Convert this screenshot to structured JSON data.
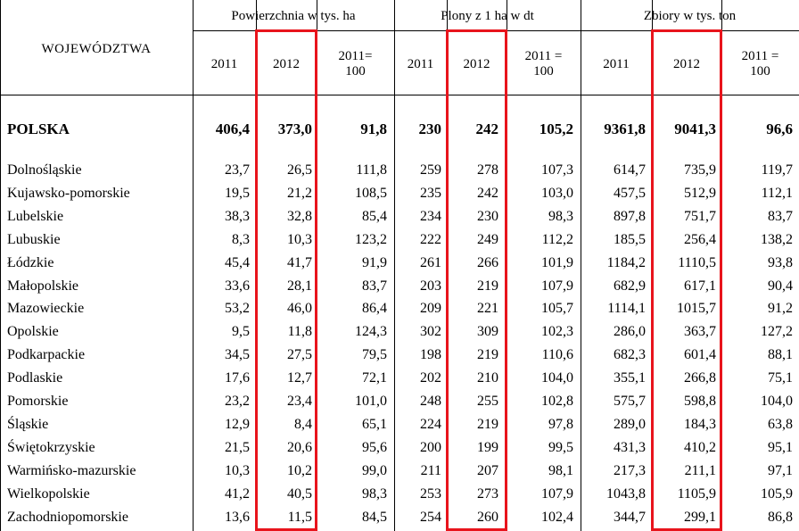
{
  "header": {
    "row_label": "WOJEWÓDZTWA",
    "groups": [
      {
        "title": "Powierzchnia w tys. ha",
        "sub": [
          "2011",
          "2012",
          "2011=\n100"
        ]
      },
      {
        "title": "Plony z 1 ha w dt",
        "sub": [
          "2011",
          "2012",
          "2011 =\n100"
        ]
      },
      {
        "title": "Zbiory w tys. ton",
        "sub": [
          "2011",
          "2012",
          "2011 =\n100"
        ]
      }
    ]
  },
  "total": {
    "name": "POLSKA",
    "values": [
      "406,4",
      "373,0",
      "91,8",
      "230",
      "242",
      "105,2",
      "9361,8",
      "9041,3",
      "96,6"
    ]
  },
  "rows": [
    {
      "name": "Dolnośląskie",
      "values": [
        "23,7",
        "26,5",
        "111,8",
        "259",
        "278",
        "107,3",
        "614,7",
        "735,9",
        "119,7"
      ]
    },
    {
      "name": "Kujawsko-pomorskie",
      "values": [
        "19,5",
        "21,2",
        "108,5",
        "235",
        "242",
        "103,0",
        "457,5",
        "512,9",
        "112,1"
      ]
    },
    {
      "name": "Lubelskie",
      "values": [
        "38,3",
        "32,8",
        "85,4",
        "234",
        "230",
        "98,3",
        "897,8",
        "751,7",
        "83,7"
      ]
    },
    {
      "name": "Lubuskie",
      "values": [
        "8,3",
        "10,3",
        "123,2",
        "222",
        "249",
        "112,2",
        "185,5",
        "256,4",
        "138,2"
      ]
    },
    {
      "name": "Łódzkie",
      "values": [
        "45,4",
        "41,7",
        "91,9",
        "261",
        "266",
        "101,9",
        "1184,2",
        "1110,5",
        "93,8"
      ]
    },
    {
      "name": "Małopolskie",
      "values": [
        "33,6",
        "28,1",
        "83,7",
        "203",
        "219",
        "107,9",
        "682,9",
        "617,1",
        "90,4"
      ]
    },
    {
      "name": "Mazowieckie",
      "values": [
        "53,2",
        "46,0",
        "86,4",
        "209",
        "221",
        "105,7",
        "1114,1",
        "1015,7",
        "91,2"
      ]
    },
    {
      "name": "Opolskie",
      "values": [
        "9,5",
        "11,8",
        "124,3",
        "302",
        "309",
        "102,3",
        "286,0",
        "363,7",
        "127,2"
      ]
    },
    {
      "name": "Podkarpackie",
      "values": [
        "34,5",
        "27,5",
        "79,5",
        "198",
        "219",
        "110,6",
        "682,3",
        "601,4",
        "88,1"
      ]
    },
    {
      "name": "Podlaskie",
      "values": [
        "17,6",
        "12,7",
        "72,1",
        "202",
        "210",
        "104,0",
        "355,1",
        "266,8",
        "75,1"
      ]
    },
    {
      "name": "Pomorskie",
      "values": [
        "23,2",
        "23,4",
        "101,0",
        "248",
        "255",
        "102,8",
        "575,7",
        "598,8",
        "104,0"
      ]
    },
    {
      "name": "Śląskie",
      "values": [
        "12,9",
        "8,4",
        "65,1",
        "224",
        "219",
        "97,8",
        "289,0",
        "184,3",
        "63,8"
      ]
    },
    {
      "name": "Świętokrzyskie",
      "values": [
        "21,5",
        "20,6",
        "95,6",
        "200",
        "199",
        "99,5",
        "431,3",
        "410,2",
        "95,1"
      ]
    },
    {
      "name": "Warmińsko-mazurskie",
      "values": [
        "10,3",
        "10,2",
        "99,0",
        "211",
        "207",
        "98,1",
        "217,3",
        "211,1",
        "97,1"
      ]
    },
    {
      "name": "Wielkopolskie",
      "values": [
        "41,2",
        "40,5",
        "98,3",
        "253",
        "273",
        "107,9",
        "1043,8",
        "1105,9",
        "105,9"
      ]
    },
    {
      "name": "Zachodniopomorskie",
      "values": [
        "13,6",
        "11,5",
        "84,5",
        "254",
        "260",
        "102,4",
        "344,7",
        "299,1",
        "86,8"
      ]
    }
  ],
  "highlight_color": "#e8141c"
}
